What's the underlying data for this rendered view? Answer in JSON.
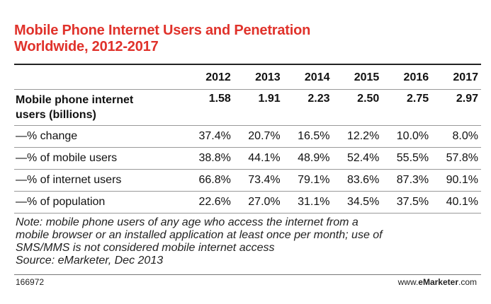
{
  "chart_data": {
    "type": "table",
    "title_line1": "Mobile Phone Internet Users and Penetration",
    "title_line2": "Worldwide, 2012-2017",
    "columns": [
      "2012",
      "2013",
      "2014",
      "2015",
      "2016",
      "2017"
    ],
    "rows": [
      {
        "label_line1": "Mobile phone internet",
        "label_line2": "users (billions)",
        "values": [
          "1.58",
          "1.91",
          "2.23",
          "2.50",
          "2.75",
          "2.97"
        ],
        "bold": true
      },
      {
        "label": "—% change",
        "values": [
          "37.4%",
          "20.7%",
          "16.5%",
          "12.2%",
          "10.0%",
          "8.0%"
        ]
      },
      {
        "label": "—% of mobile users",
        "values": [
          "38.8%",
          "44.1%",
          "48.9%",
          "52.4%",
          "55.5%",
          "57.8%"
        ]
      },
      {
        "label": "—% of internet users",
        "values": [
          "66.8%",
          "73.4%",
          "79.1%",
          "83.6%",
          "87.3%",
          "90.1%"
        ]
      },
      {
        "label": "—% of population",
        "values": [
          "22.6%",
          "27.0%",
          "31.1%",
          "34.5%",
          "37.5%",
          "40.1%"
        ]
      }
    ],
    "note_lines": [
      "Note: mobile phone users of any age who access the internet from a",
      "mobile browser or an installed application at least once per month; use of",
      "SMS/MMS is not considered mobile internet access",
      "Source: eMarketer, Dec 2013"
    ],
    "chart_id": "166972",
    "brand_prefix": "www.",
    "brand_name": "eMarketer",
    "brand_suffix": ".com",
    "title_color": "#e0322b"
  }
}
